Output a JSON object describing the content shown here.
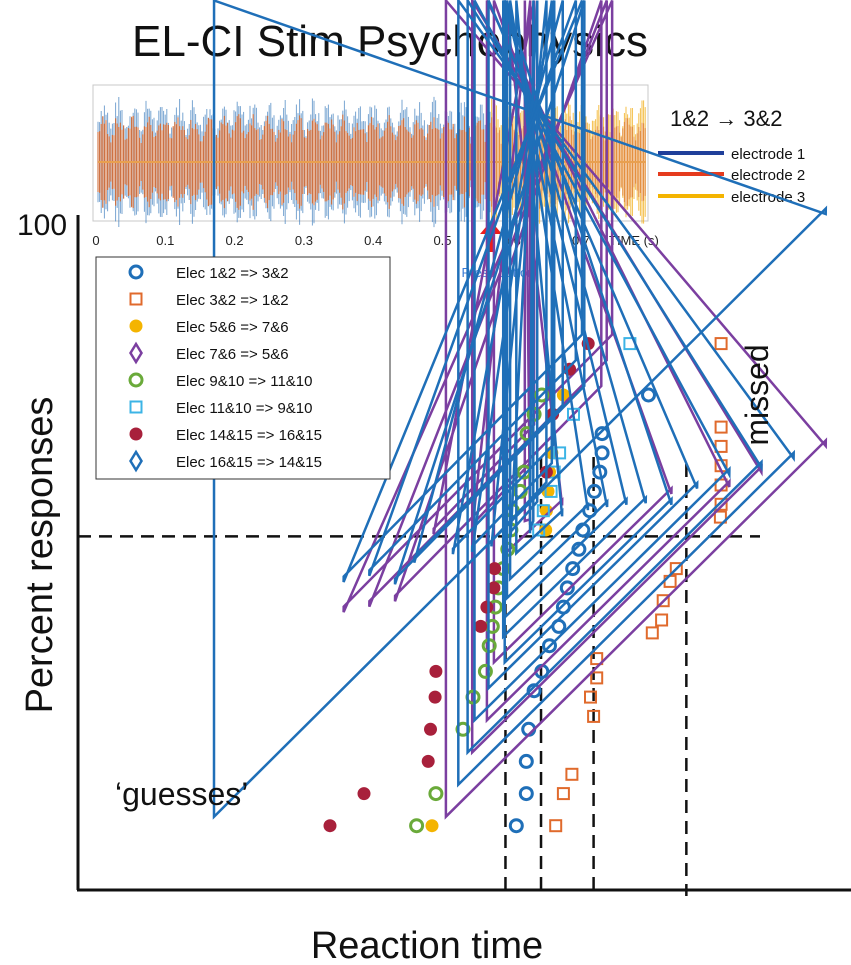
{
  "colors": {
    "e1": "#1f3f9a",
    "e2": "#e53b1e",
    "e3": "#f4b400",
    "blue_sig": "#4b86c2",
    "orange_sig": "#d9692c",
    "yellow_sig": "#f2b01e",
    "press": "#ee1c1c",
    "press_text": "#3a7bd5"
  },
  "chart_data": {
    "type": "scatter",
    "title": "EL-CI Stim Psychophysics",
    "xlabel": "Reaction time",
    "ylabel": "Percent responses",
    "ytick_top": "100",
    "y_reference": 50,
    "annotations": {
      "guesses": "‘guesses’",
      "missed": "missed"
    },
    "inset": {
      "series_note": "1&2 → 3&2",
      "time_label": "TIME (s)",
      "ticks": [
        "0",
        "0.1",
        "0.2",
        "0.3",
        "0.4",
        "0.5",
        "0.6",
        "0.7"
      ],
      "switch_time": 0.57,
      "press_label": "Press button",
      "legend": [
        {
          "label": "electrode 1",
          "color_key": "e1"
        },
        {
          "label": "electrode 2",
          "color_key": "e2"
        },
        {
          "label": "electrode 3",
          "color_key": "e3"
        }
      ]
    },
    "legend": [
      "Elec 1&2 => 3&2",
      "Elec 3&2 => 1&2",
      "Elec 5&6 => 7&6",
      "Elec 7&6 => 5&6",
      "Elec 9&10 => 11&10",
      "Elec 11&10 => 9&10",
      "Elec 14&15 => 16&15",
      "Elec 16&15 => 14&15"
    ],
    "series": [
      {
        "name": "Elec 1&2 => 3&2",
        "marker": "circle",
        "color": "#1f6fb8",
        "points": [
          [
            56.7,
            5
          ],
          [
            58.0,
            10
          ],
          [
            58.0,
            15
          ],
          [
            58.3,
            20
          ],
          [
            59.0,
            26
          ],
          [
            60.0,
            29
          ],
          [
            61.0,
            33
          ],
          [
            62.2,
            36
          ],
          [
            62.8,
            39
          ],
          [
            63.3,
            42
          ],
          [
            64.0,
            45
          ],
          [
            64.8,
            48
          ],
          [
            65.3,
            51
          ],
          [
            66.2,
            54
          ],
          [
            66.8,
            57
          ],
          [
            67.5,
            60
          ],
          [
            67.8,
            63
          ],
          [
            67.8,
            66
          ],
          [
            73.8,
            72
          ]
        ]
      },
      {
        "name": "Elec 3&2 => 1&2",
        "marker": "square",
        "color": "#e06a2c",
        "points": [
          [
            61.8,
            5
          ],
          [
            62.8,
            10
          ],
          [
            63.9,
            13
          ],
          [
            66.7,
            22
          ],
          [
            66.3,
            25
          ],
          [
            67.1,
            28
          ],
          [
            67.1,
            31
          ],
          [
            74.3,
            35
          ],
          [
            75.5,
            37
          ],
          [
            75.7,
            40
          ],
          [
            76.6,
            43
          ],
          [
            77.4,
            45
          ],
          [
            83.1,
            53
          ],
          [
            83.2,
            55
          ],
          [
            83.2,
            58
          ],
          [
            83.2,
            61
          ],
          [
            83.2,
            64
          ],
          [
            83.2,
            67
          ],
          [
            83.2,
            80
          ]
        ]
      },
      {
        "name": "Elec 5&6 => 7&6",
        "marker": "dot",
        "color": "#f4b400",
        "points": [
          [
            45.8,
            5
          ],
          [
            60.5,
            51
          ],
          [
            60.6,
            54
          ],
          [
            60.8,
            57
          ],
          [
            61.0,
            60
          ],
          [
            61.3,
            63
          ],
          [
            62.8,
            72
          ]
        ]
      },
      {
        "name": "Elec 7&6 => 5&6",
        "marker": "diamond",
        "color": "#7b3fa0",
        "points": [
          [
            47.6,
            5
          ],
          [
            51.0,
            15
          ],
          [
            52.9,
            20
          ],
          [
            53.8,
            29
          ],
          [
            55.3,
            46
          ],
          [
            57.8,
            51
          ],
          [
            58.5,
            60
          ],
          [
            59.0,
            66
          ],
          [
            67.7,
            72
          ],
          [
            68.4,
            76
          ],
          [
            69.1,
            80
          ]
        ]
      },
      {
        "name": "Elec 9&10 => 11&10",
        "marker": "circle",
        "color": "#6aaa3a",
        "points": [
          [
            43.8,
            5
          ],
          [
            46.3,
            10
          ],
          [
            49.8,
            20
          ],
          [
            51.1,
            25
          ],
          [
            52.7,
            29
          ],
          [
            53.2,
            33
          ],
          [
            53.6,
            36
          ],
          [
            54.0,
            39
          ],
          [
            54.4,
            42
          ],
          [
            55.0,
            45
          ],
          [
            55.6,
            48
          ],
          [
            56.0,
            51
          ],
          [
            56.2,
            54
          ],
          [
            57.2,
            57
          ],
          [
            57.7,
            60
          ],
          [
            58.1,
            66
          ],
          [
            59.0,
            69
          ],
          [
            60.0,
            72
          ]
        ]
      },
      {
        "name": "Elec 11&10 => 9&10",
        "marker": "square",
        "color": "#3cb4e6",
        "points": [
          [
            59.6,
            51
          ],
          [
            60.2,
            54
          ],
          [
            61.2,
            57
          ],
          [
            61.6,
            60
          ],
          [
            62.3,
            63
          ],
          [
            64.1,
            69
          ],
          [
            71.4,
            80
          ]
        ]
      },
      {
        "name": "Elec 14&15 => 16&15",
        "marker": "dot",
        "color": "#a8203b",
        "points": [
          [
            32.6,
            5
          ],
          [
            37.0,
            10
          ],
          [
            45.3,
            15
          ],
          [
            45.6,
            20
          ],
          [
            46.2,
            25
          ],
          [
            46.3,
            29
          ],
          [
            52.1,
            36
          ],
          [
            52.9,
            39
          ],
          [
            53.8,
            42
          ],
          [
            53.9,
            45
          ],
          [
            60.6,
            60
          ],
          [
            61.4,
            69
          ],
          [
            63.6,
            76
          ],
          [
            66.0,
            80
          ]
        ]
      },
      {
        "name": "Elec 16&15 => 14&15",
        "marker": "diamond",
        "color": "#1f6fb8",
        "points": [
          [
            17.6,
            5
          ],
          [
            49.2,
            10
          ],
          [
            50.4,
            15
          ],
          [
            51.3,
            20
          ],
          [
            53.1,
            25
          ],
          [
            55.2,
            29
          ],
          [
            55.0,
            33
          ],
          [
            55.2,
            36
          ],
          [
            55.5,
            39
          ],
          [
            55.9,
            42
          ],
          [
            56.7,
            46
          ],
          [
            58.9,
            51
          ],
          [
            59.4,
            54
          ],
          [
            60.6,
            57
          ],
          [
            61.3,
            60
          ],
          [
            61.6,
            63
          ],
          [
            62.7,
            69
          ],
          [
            65.5,
            72
          ],
          [
            64.4,
            76
          ],
          [
            65.2,
            80
          ]
        ]
      }
    ],
    "vertical_dashed_x": [
      55.3,
      59.9,
      66.7,
      78.7
    ],
    "x_range": [
      0,
      100
    ],
    "y_range": [
      -5,
      100
    ]
  }
}
